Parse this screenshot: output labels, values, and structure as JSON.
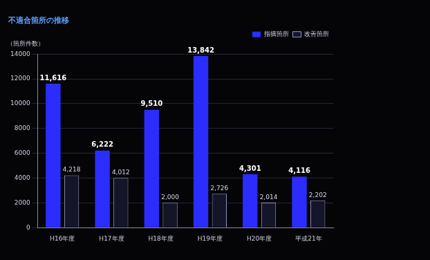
{
  "chart_data": {
    "type": "bar",
    "title": "不適合箇所の推移",
    "y_label": "（箇所件数）",
    "categories": [
      "H16年度",
      "H17年度",
      "H18年度",
      "H19年度",
      "H20年度",
      "平成21年"
    ],
    "series": [
      {
        "name": "指摘箇所",
        "color": "#2b2dff",
        "values": [
          11616,
          6222,
          9510,
          13842,
          4301,
          4116
        ],
        "value_labels": [
          "11,616",
          "6,222",
          "9,510",
          "13,842",
          "4,301",
          "4,116"
        ]
      },
      {
        "name": "改善箇所",
        "color": "#15152a",
        "values": [
          4218,
          4012,
          2000,
          2726,
          2014,
          2202
        ],
        "value_labels": [
          "4,218",
          "4,012",
          "2,000",
          "2,726",
          "2,014",
          "2,202"
        ]
      }
    ],
    "ylim": [
      0,
      14000
    ],
    "yticks": [
      0,
      2000,
      4000,
      6000,
      8000,
      10000,
      12000,
      14000
    ],
    "grid": true,
    "legend": "upper right",
    "data_labels": true
  }
}
